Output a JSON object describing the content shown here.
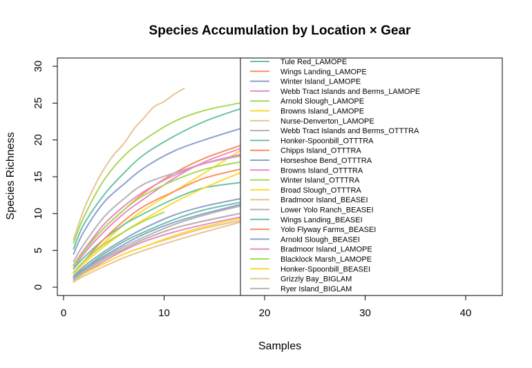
{
  "chart_data": {
    "type": "line",
    "title": "Species Accumulation by Location × Gear",
    "xlabel": "Samples",
    "ylabel": "Species Richness",
    "xlim": [
      0,
      43
    ],
    "ylim": [
      0,
      31
    ],
    "xticks": [
      0,
      10,
      20,
      30,
      40
    ],
    "yticks": [
      0,
      5,
      10,
      15,
      20,
      25,
      30
    ],
    "legend_position": "top-right, inside plot",
    "series": [
      {
        "name": "Tule Red_LAMOPE",
        "color": "#66C2A5",
        "x": [
          1,
          2,
          4,
          6,
          8,
          11,
          14,
          17.5
        ],
        "y": [
          5.2,
          8.5,
          12.5,
          15.5,
          18.0,
          20.5,
          22.5,
          24.2
        ]
      },
      {
        "name": "Wings Landing_LAMOPE",
        "color": "#FC8D62",
        "x": [
          1,
          2,
          4,
          6,
          8,
          11,
          14,
          17.5
        ],
        "y": [
          3.0,
          5.0,
          8.0,
          10.5,
          12.8,
          15.5,
          17.5,
          19.2
        ]
      },
      {
        "name": "Winter Island_LAMOPE",
        "color": "#8DA0CB",
        "x": [
          1,
          2,
          4,
          6,
          8,
          11,
          14,
          17.5
        ],
        "y": [
          4.5,
          7.5,
          11.5,
          14.0,
          16.2,
          18.5,
          20.0,
          21.5
        ]
      },
      {
        "name": "Webb Tract Islands and Berms_LAMOPE",
        "color": "#E78AC3",
        "x": [
          1,
          2,
          4,
          6,
          8,
          11,
          14,
          17.5
        ],
        "y": [
          2.5,
          4.5,
          7.5,
          10.0,
          12.0,
          14.8,
          17.0,
          18.8
        ]
      },
      {
        "name": "Arnold Slough_LAMOPE",
        "color": "#A6D854",
        "x": [
          1,
          2,
          4,
          6,
          8,
          11,
          14,
          17.5
        ],
        "y": [
          6.0,
          9.5,
          14.5,
          17.8,
          20.0,
          22.5,
          24.0,
          25.0
        ]
      },
      {
        "name": "Browns Island_LAMOPE",
        "color": "#FFD92F",
        "x": [
          1,
          2,
          4,
          6,
          8,
          11,
          14,
          17.5
        ],
        "y": [
          2.0,
          3.5,
          6.0,
          8.5,
          10.5,
          13.0,
          15.5,
          18.5
        ]
      },
      {
        "name": "Nurse-Denverton_LAMOPE",
        "color": "#E5C494",
        "x": [
          1,
          2,
          3,
          4,
          5,
          6,
          7,
          8,
          9,
          10,
          11,
          12
        ],
        "y": [
          6.5,
          10.5,
          13.5,
          16.0,
          18.0,
          19.5,
          21.5,
          23.0,
          24.5,
          25.2,
          26.2,
          27.0
        ]
      },
      {
        "name": "Webb Tract Islands and Berms_OTTTRA",
        "color": "#B3B3B3",
        "x": [
          1,
          2,
          4,
          6,
          8,
          11,
          14,
          17.5
        ],
        "y": [
          3.5,
          5.8,
          9.5,
          12.0,
          14.0,
          15.5,
          16.8,
          17.8
        ]
      },
      {
        "name": "Honker-Spoonbill_OTTTRA",
        "color": "#66C2A5",
        "x": [
          1,
          2,
          4,
          6,
          8,
          11,
          14,
          17.5
        ],
        "y": [
          2.5,
          4.0,
          6.5,
          8.5,
          10.0,
          12.0,
          13.5,
          14.2
        ]
      },
      {
        "name": "Chipps Island_OTTTRA",
        "color": "#FC8D62",
        "x": [
          1,
          2,
          4,
          6,
          8,
          11,
          14,
          17.5
        ],
        "y": [
          2.0,
          3.5,
          6.5,
          9.0,
          11.0,
          13.0,
          14.8,
          16.0
        ]
      },
      {
        "name": "Horseshoe Bend_OTTTRA",
        "color": "#8DA0CB",
        "x": [
          1,
          2,
          4,
          6,
          8,
          11,
          14,
          17.5
        ],
        "y": [
          1.5,
          2.8,
          4.8,
          6.5,
          8.0,
          9.8,
          11.0,
          12.0
        ]
      },
      {
        "name": "Browns Island_OTTTRA",
        "color": "#E78AC3",
        "x": [
          1,
          2,
          4,
          6,
          8,
          11,
          14,
          17.5
        ],
        "y": [
          3.0,
          5.0,
          8.5,
          11.0,
          13.0,
          15.2,
          16.8,
          18.0
        ]
      },
      {
        "name": "Winter Island_OTTTRA",
        "color": "#A6D854",
        "x": [
          1,
          2,
          4,
          6,
          8,
          11,
          14,
          17.5
        ],
        "y": [
          2.8,
          4.8,
          8.0,
          10.5,
          12.5,
          14.5,
          16.0,
          17.0
        ]
      },
      {
        "name": "Broad Slough_OTTTRA",
        "color": "#FFD92F",
        "x": [
          1,
          2,
          4,
          6,
          8,
          11,
          14,
          17.5
        ],
        "y": [
          1.8,
          3.2,
          5.5,
          7.5,
          9.2,
          11.5,
          13.5,
          15.5
        ]
      },
      {
        "name": "Bradmoor Island_BEASEI",
        "color": "#E5C494",
        "x": [
          1,
          2,
          4,
          6,
          8,
          11,
          14,
          17.5
        ],
        "y": [
          0.8,
          1.8,
          3.2,
          4.5,
          5.5,
          6.8,
          8.0,
          9.0
        ]
      },
      {
        "name": "Lower Yolo Ranch_BEASEI",
        "color": "#B3B3B3",
        "x": [
          1,
          2,
          4,
          6,
          8,
          11,
          14,
          17.5
        ],
        "y": [
          1.2,
          2.2,
          4.0,
          5.5,
          6.8,
          8.5,
          9.8,
          11.0
        ]
      },
      {
        "name": "Wings Landing_BEASEI",
        "color": "#66C2A5",
        "x": [
          1,
          2,
          4,
          6,
          8,
          11,
          14,
          17.5
        ],
        "y": [
          1.5,
          2.5,
          4.5,
          6.2,
          7.5,
          9.2,
          10.5,
          11.5
        ]
      },
      {
        "name": "Yolo Flyway Farms_BEASEI",
        "color": "#FC8D62",
        "x": [
          1,
          2,
          4,
          6,
          8,
          11,
          14,
          17.5
        ],
        "y": [
          1.0,
          2.0,
          3.8,
          5.2,
          6.5,
          8.0,
          9.0,
          10.0
        ]
      },
      {
        "name": "Arnold Slough_BEASEI",
        "color": "#8DA0CB",
        "x": [
          1,
          2,
          4,
          6,
          8,
          11,
          14,
          17.5
        ],
        "y": [
          1.3,
          2.4,
          4.2,
          5.8,
          7.2,
          8.8,
          10.0,
          11.2
        ]
      },
      {
        "name": "Bradmoor Island_LAMOPE",
        "color": "#E78AC3",
        "x": [
          1,
          2,
          4,
          6,
          8,
          11,
          14,
          17.5
        ],
        "y": [
          1.0,
          1.8,
          3.5,
          5.0,
          6.2,
          7.5,
          8.5,
          9.5
        ]
      },
      {
        "name": "Blacklock Marsh_LAMOPE",
        "color": "#A6D854",
        "x": [
          1,
          2,
          4,
          6,
          8,
          10
        ],
        "y": [
          2.0,
          3.5,
          5.8,
          7.5,
          9.0,
          10.2
        ]
      },
      {
        "name": "Honker-Spoonbill_BEASEI",
        "color": "#FFD92F",
        "x": [
          1,
          2,
          4,
          6,
          8,
          11,
          14,
          17.5
        ],
        "y": [
          1.0,
          1.8,
          3.2,
          4.5,
          5.5,
          7.0,
          8.2,
          9.3
        ]
      },
      {
        "name": "Grizzly Bay_BIGLAM",
        "color": "#E5C494",
        "x": [
          1,
          2,
          4,
          6,
          8,
          11,
          14,
          17.5
        ],
        "y": [
          0.7,
          1.5,
          2.8,
          4.0,
          5.0,
          6.3,
          7.5,
          8.8
        ]
      },
      {
        "name": "Ryer Island_BIGLAM",
        "color": "#B3B3B3",
        "x": [
          1,
          2,
          4,
          6,
          8,
          11,
          14,
          17.5
        ],
        "y": [
          1.0,
          2.0,
          3.8,
          5.2,
          6.5,
          8.0,
          9.0,
          10.0
        ]
      }
    ]
  }
}
